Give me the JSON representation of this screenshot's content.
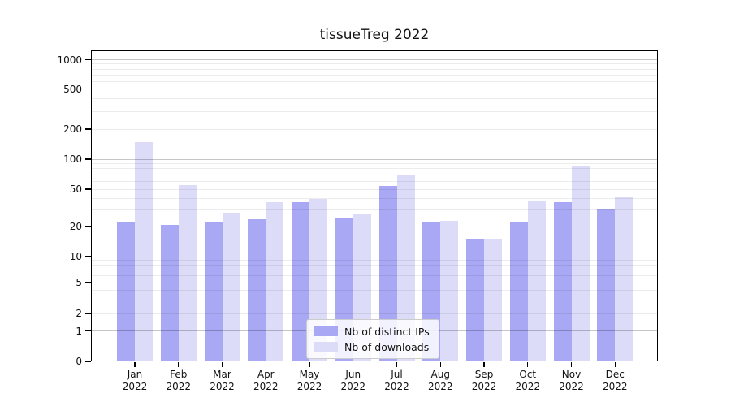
{
  "title": "tissueTreg 2022",
  "legend": {
    "items": [
      {
        "label": "Nb of distinct IPs",
        "color": "#a8a8f5"
      },
      {
        "label": "Nb of downloads",
        "color": "#dcdcf9"
      }
    ]
  },
  "colors": {
    "distinct_ips_bar": "#a8a8f5",
    "downloads_bar": "#dcdcf9",
    "major_gridline": "#c6c6c6",
    "minor_gridline": "#ececec",
    "axis": "#000000"
  },
  "chart_data": {
    "type": "bar",
    "title": "tissueTreg 2022",
    "xlabel": "",
    "ylabel": "",
    "yscale": "symlog",
    "ylim": [
      0,
      1000
    ],
    "grid": "on",
    "legend_position": "inside bottom-center",
    "y_ticks": [
      0,
      1,
      2,
      5,
      10,
      20,
      50,
      100,
      200,
      500,
      1000
    ],
    "minor_grid_values": [
      2,
      3,
      4,
      5,
      6,
      7,
      8,
      9,
      20,
      30,
      40,
      50,
      60,
      70,
      80,
      90,
      200,
      300,
      400,
      500,
      600,
      700,
      800,
      900
    ],
    "major_grid_values": [
      1,
      10,
      100,
      1000
    ],
    "categories": [
      "Jan 2022",
      "Feb 2022",
      "Mar 2022",
      "Apr 2022",
      "May 2022",
      "Jun 2022",
      "Jul 2022",
      "Aug 2022",
      "Sep 2022",
      "Oct 2022",
      "Nov 2022",
      "Dec 2022"
    ],
    "months": [
      {
        "month": "Jan",
        "year": "2022"
      },
      {
        "month": "Feb",
        "year": "2022"
      },
      {
        "month": "Mar",
        "year": "2022"
      },
      {
        "month": "Apr",
        "year": "2022"
      },
      {
        "month": "May",
        "year": "2022"
      },
      {
        "month": "Jun",
        "year": "2022"
      },
      {
        "month": "Jul",
        "year": "2022"
      },
      {
        "month": "Aug",
        "year": "2022"
      },
      {
        "month": "Sep",
        "year": "2022"
      },
      {
        "month": "Oct",
        "year": "2022"
      },
      {
        "month": "Nov",
        "year": "2022"
      },
      {
        "month": "Dec",
        "year": "2022"
      }
    ],
    "series": [
      {
        "name": "Nb of distinct IPs",
        "color": "#a8a8f5",
        "values": [
          22,
          21,
          22,
          24,
          36,
          25,
          54,
          22,
          15,
          22,
          36,
          31
        ]
      },
      {
        "name": "Nb of downloads",
        "color": "#dcdcf9",
        "values": [
          147,
          55,
          28,
          36,
          39,
          27,
          70,
          23,
          15,
          38,
          84,
          42
        ]
      }
    ]
  }
}
